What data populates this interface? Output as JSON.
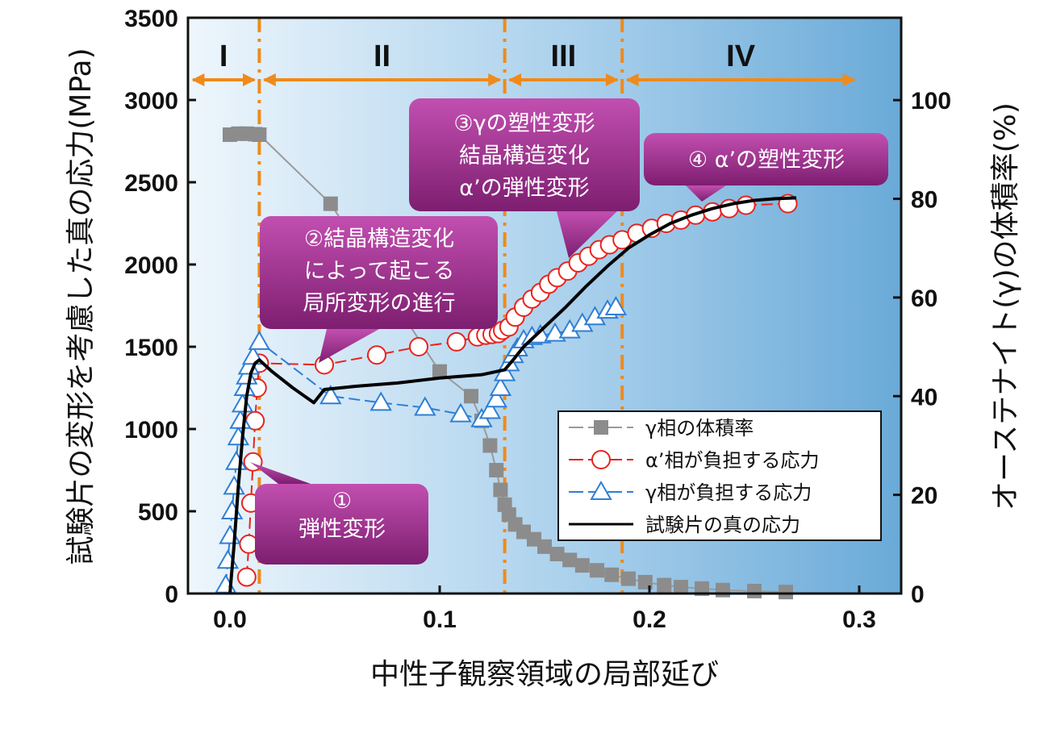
{
  "chart_data": {
    "type": "line",
    "xlabel": "中性子観察領域の局部延び",
    "ylabel_left": "試験片の変形を考慮した真の応力(MPa)",
    "ylabel_right": "オーステナイト(γ)の体積率(%)",
    "xlim": [
      -0.02,
      0.32
    ],
    "ylim_left": [
      0,
      3500
    ],
    "ylim_right": [
      0,
      116.7
    ],
    "xticks": [
      {
        "v": 0.0,
        "label": "0.0"
      },
      {
        "v": 0.1,
        "label": "0.1"
      },
      {
        "v": 0.2,
        "label": "0.2"
      },
      {
        "v": 0.3,
        "label": "0.3"
      }
    ],
    "yticks_left": [
      {
        "v": 0,
        "label": "0"
      },
      {
        "v": 500,
        "label": "500"
      },
      {
        "v": 1000,
        "label": "1000"
      },
      {
        "v": 1500,
        "label": "1500"
      },
      {
        "v": 2000,
        "label": "2000"
      },
      {
        "v": 2500,
        "label": "2500"
      },
      {
        "v": 3000,
        "label": "3000"
      },
      {
        "v": 3500,
        "label": "3500"
      }
    ],
    "yticks_right": [
      {
        "v": 0,
        "label": "0"
      },
      {
        "v": 20,
        "label": "20"
      },
      {
        "v": 40,
        "label": "40"
      },
      {
        "v": 60,
        "label": "60"
      },
      {
        "v": 80,
        "label": "80"
      },
      {
        "v": 100,
        "label": "100"
      }
    ],
    "region_boundaries": [
      0.014,
      0.131,
      0.187
    ],
    "regions": [
      {
        "label": "I",
        "from": -0.02,
        "to": 0.014
      },
      {
        "label": "II",
        "from": 0.014,
        "to": 0.131
      },
      {
        "label": "III",
        "from": 0.131,
        "to": 0.187
      },
      {
        "label": "IV",
        "from": 0.187,
        "to": 0.3
      }
    ],
    "series": [
      {
        "name": "γ相の体積率",
        "axis": "right",
        "marker": "square",
        "color": "#8c8c8c",
        "x": [
          0.0,
          0.004,
          0.008,
          0.012,
          0.014,
          0.048,
          0.1,
          0.115,
          0.12,
          0.124,
          0.127,
          0.129,
          0.131,
          0.133,
          0.136,
          0.14,
          0.145,
          0.15,
          0.156,
          0.162,
          0.168,
          0.175,
          0.182,
          0.19,
          0.198,
          0.207,
          0.215,
          0.225,
          0.235,
          0.25,
          0.265
        ],
        "y": [
          93,
          93.2,
          93.2,
          93.1,
          93,
          79,
          45,
          40,
          35,
          30,
          25,
          21,
          18,
          16,
          14,
          12.5,
          11,
          9.5,
          8,
          6.8,
          5.7,
          4.7,
          3.8,
          3,
          2.3,
          1.7,
          1.3,
          1,
          0.7,
          0.5,
          0.3
        ]
      },
      {
        "name": "α’相が負担する応力",
        "axis": "left",
        "marker": "circle",
        "color": "#e8231e",
        "x": [
          0.008,
          0.009,
          0.01,
          0.011,
          0.012,
          0.013,
          0.014,
          0.045,
          0.07,
          0.09,
          0.108,
          0.118,
          0.122,
          0.125,
          0.128,
          0.13,
          0.133,
          0.136,
          0.14,
          0.144,
          0.148,
          0.152,
          0.156,
          0.161,
          0.166,
          0.171,
          0.176,
          0.181,
          0.187,
          0.194,
          0.201,
          0.208,
          0.215,
          0.222,
          0.23,
          0.238,
          0.246,
          0.266
        ],
        "y": [
          100,
          300,
          550,
          800,
          1050,
          1250,
          1400,
          1390,
          1450,
          1500,
          1530,
          1560,
          1570,
          1575,
          1580,
          1600,
          1620,
          1680,
          1740,
          1790,
          1830,
          1880,
          1920,
          1960,
          2010,
          2050,
          2090,
          2120,
          2150,
          2190,
          2220,
          2250,
          2270,
          2300,
          2320,
          2340,
          2360,
          2370
        ]
      },
      {
        "name": "γ相が負担する応力",
        "axis": "left",
        "marker": "triangle",
        "color": "#2f7fd6",
        "x": [
          -0.002,
          -0.001,
          0.0,
          0.001,
          0.002,
          0.003,
          0.004,
          0.005,
          0.006,
          0.007,
          0.008,
          0.009,
          0.011,
          0.014,
          0.048,
          0.072,
          0.093,
          0.11,
          0.12,
          0.124,
          0.127,
          0.129,
          0.131,
          0.133,
          0.135,
          0.137,
          0.14,
          0.144,
          0.148,
          0.155,
          0.162,
          0.168,
          0.174,
          0.18,
          0.184
        ],
        "y": [
          50,
          200,
          350,
          500,
          650,
          800,
          950,
          1050,
          1150,
          1250,
          1320,
          1380,
          1440,
          1530,
          1200,
          1160,
          1130,
          1090,
          1060,
          1110,
          1180,
          1250,
          1340,
          1400,
          1450,
          1490,
          1540,
          1560,
          1570,
          1580,
          1600,
          1640,
          1680,
          1720,
          1740
        ]
      },
      {
        "name": "試験片の真の応力",
        "axis": "left",
        "marker": "none",
        "color": "#000000",
        "x": [
          0.0,
          0.002,
          0.004,
          0.006,
          0.008,
          0.01,
          0.012,
          0.014,
          0.02,
          0.03,
          0.04,
          0.045,
          0.06,
          0.08,
          0.1,
          0.12,
          0.131,
          0.135,
          0.14,
          0.15,
          0.16,
          0.17,
          0.18,
          0.19,
          0.2,
          0.21,
          0.22,
          0.23,
          0.24,
          0.25,
          0.26,
          0.27
        ],
        "y": [
          0,
          300,
          650,
          950,
          1200,
          1340,
          1400,
          1420,
          1350,
          1250,
          1160,
          1240,
          1260,
          1280,
          1310,
          1330,
          1360,
          1420,
          1500,
          1620,
          1740,
          1870,
          1990,
          2100,
          2180,
          2250,
          2300,
          2340,
          2370,
          2390,
          2400,
          2405
        ]
      }
    ],
    "annotations": [
      {
        "lines": [
          "①",
          "弾性変形"
        ]
      },
      {
        "lines": [
          "②結晶構造変化",
          "によって起こる",
          "局所変形の進行"
        ]
      },
      {
        "lines": [
          "③γの塑性変形",
          "結晶構造変化",
          "α’の弾性変形"
        ]
      },
      {
        "lines": [
          "④ α’の塑性変形"
        ]
      }
    ],
    "legend_position": "bottom-right",
    "colors": {
      "arrow": "#f08a1a",
      "callout": "#9b2a8c",
      "background_light": "#eaf4fb",
      "background_dark": "#72b1db"
    }
  }
}
